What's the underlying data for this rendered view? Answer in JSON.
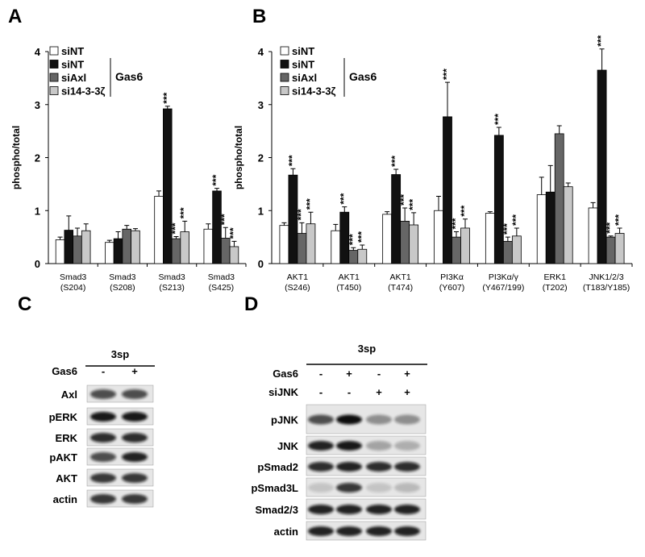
{
  "chart_data": [
    {
      "type": "bar",
      "label": "A",
      "ylabel": "phospho/total",
      "legend_group_label": "Gas6",
      "categories": [
        [
          "Smad3",
          "(S204)"
        ],
        [
          "Smad3",
          "(S208)"
        ],
        [
          "Smad3",
          "(S213)"
        ],
        [
          "Smad3",
          "(S425)"
        ]
      ],
      "ylim": [
        0,
        4
      ],
      "yticks": [
        0,
        1,
        2,
        3,
        4
      ],
      "series": [
        {
          "name": "siNT",
          "color": "#ffffff",
          "values": [
            0.45,
            0.4,
            1.27,
            0.65
          ],
          "errors": [
            0.05,
            0.04,
            0.1,
            0.1
          ],
          "annotations": [
            null,
            null,
            null,
            null
          ]
        },
        {
          "name": "siNT",
          "color": "#111111",
          "values": [
            0.63,
            0.47,
            2.92,
            1.37
          ],
          "errors": [
            0.27,
            0.13,
            0.05,
            0.05
          ],
          "annotations": [
            null,
            null,
            "***",
            "***"
          ]
        },
        {
          "name": "siAxl",
          "color": "#666666",
          "values": [
            0.52,
            0.65,
            0.47,
            0.48
          ],
          "errors": [
            0.15,
            0.07,
            0.04,
            0.2
          ],
          "annotations": [
            null,
            null,
            "***",
            "***"
          ]
        },
        {
          "name": "si14-3-3ζ",
          "color": "#c8c8c8",
          "values": [
            0.62,
            0.62,
            0.6,
            0.32
          ],
          "errors": [
            0.13,
            0.04,
            0.2,
            0.1
          ],
          "annotations": [
            null,
            null,
            "***",
            "***"
          ]
        }
      ]
    },
    {
      "type": "bar",
      "label": "B",
      "ylabel": "phospho/total",
      "legend_group_label": "Gas6",
      "categories": [
        [
          "AKT1",
          "(S246)"
        ],
        [
          "AKT1",
          "(T450)"
        ],
        [
          "AKT1",
          "(T474)"
        ],
        [
          "PI3Kα",
          "(Y607)"
        ],
        [
          "PI3Kα/γ",
          "(Y467/199)"
        ],
        [
          "ERK1",
          "(T202)"
        ],
        [
          "JNK1/2/3",
          "(T183/Y185)"
        ]
      ],
      "ylim": [
        0,
        4
      ],
      "yticks": [
        0,
        1,
        2,
        3,
        4
      ],
      "series": [
        {
          "name": "siNT",
          "color": "#ffffff",
          "values": [
            0.72,
            0.62,
            0.93,
            1.0,
            0.95,
            1.3,
            1.05
          ],
          "errors": [
            0.05,
            0.12,
            0.05,
            0.27,
            0.03,
            0.33,
            0.1
          ],
          "annotations": [
            null,
            null,
            null,
            null,
            null,
            null,
            null
          ]
        },
        {
          "name": "siNT",
          "color": "#111111",
          "values": [
            1.67,
            0.97,
            1.68,
            2.77,
            2.42,
            1.35,
            3.65
          ],
          "errors": [
            0.12,
            0.1,
            0.1,
            0.65,
            0.15,
            0.5,
            0.4
          ],
          "annotations": [
            "***",
            "***",
            "***",
            "***",
            "***",
            null,
            "***"
          ]
        },
        {
          "name": "siAxl",
          "color": "#666666",
          "values": [
            0.57,
            0.25,
            0.8,
            0.5,
            0.42,
            2.45,
            0.5
          ],
          "errors": [
            0.2,
            0.05,
            0.25,
            0.1,
            0.08,
            0.15,
            0.02
          ],
          "annotations": [
            "***",
            "***",
            "***",
            "***",
            "***",
            null,
            "***"
          ]
        },
        {
          "name": "si14-3-3ζ",
          "color": "#c8c8c8",
          "values": [
            0.75,
            0.27,
            0.73,
            0.67,
            0.52,
            1.45,
            0.57
          ],
          "errors": [
            0.22,
            0.08,
            0.23,
            0.17,
            0.15,
            0.07,
            0.1
          ],
          "annotations": [
            "***",
            "***",
            "***",
            "***",
            "***",
            null,
            "***"
          ]
        }
      ]
    }
  ],
  "blots": [
    {
      "label": "C",
      "cell_line": "3sp",
      "conditions": [
        {
          "name": "Gas6",
          "lanes": [
            "-",
            "+"
          ]
        }
      ],
      "rows": [
        "Axl",
        "pERK",
        "ERK",
        "pAKT",
        "AKT",
        "actin"
      ]
    },
    {
      "label": "D",
      "cell_line": "3sp",
      "conditions": [
        {
          "name": "Gas6",
          "lanes": [
            "-",
            "+",
            "-",
            "+"
          ]
        },
        {
          "name": "siJNK",
          "lanes": [
            "-",
            "-",
            "+",
            "+"
          ]
        }
      ],
      "rows": [
        "pJNK",
        "JNK",
        "pSmad2",
        "pSmad3L",
        "Smad2/3",
        "actin"
      ]
    }
  ]
}
